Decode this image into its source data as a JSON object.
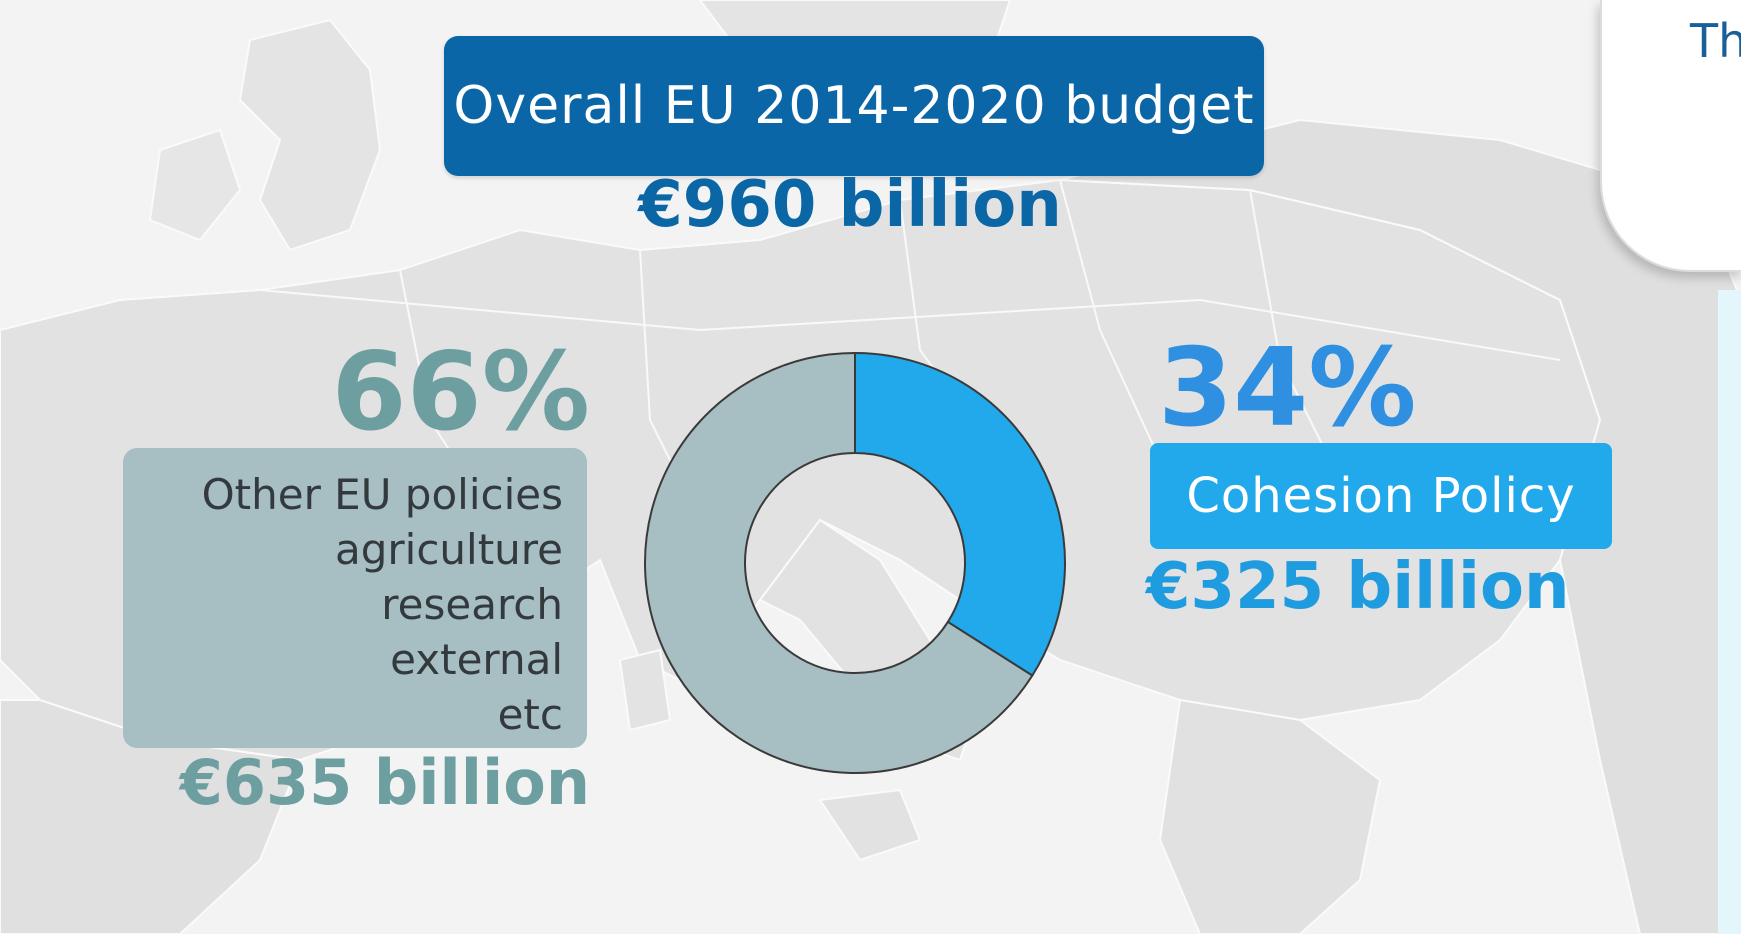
{
  "title": "Overall EU 2014-2020 budget",
  "total": "€960 billion",
  "side_panel_text": "Th",
  "left": {
    "percent": "66%",
    "lines": [
      "Other EU policies",
      "agriculture",
      "research",
      "external",
      "etc"
    ],
    "amount": "€635 billion"
  },
  "right": {
    "percent": "34%",
    "label": "Cohesion Policy",
    "amount": "€325 billion"
  },
  "colors": {
    "title_box": "#0a66a6",
    "other_policies": "#a7bec3",
    "cohesion_policy": "#22a9ec",
    "map_land": "#e6e6e6",
    "map_sea": "#f5f5f5"
  },
  "chart_data": {
    "type": "pie",
    "title": "Overall EU 2014-2020 budget",
    "categories": [
      "Cohesion Policy",
      "Other EU policies"
    ],
    "values": [
      34,
      66
    ],
    "amounts": [
      "€325 billion",
      "€635 billion"
    ],
    "hole": true
  }
}
